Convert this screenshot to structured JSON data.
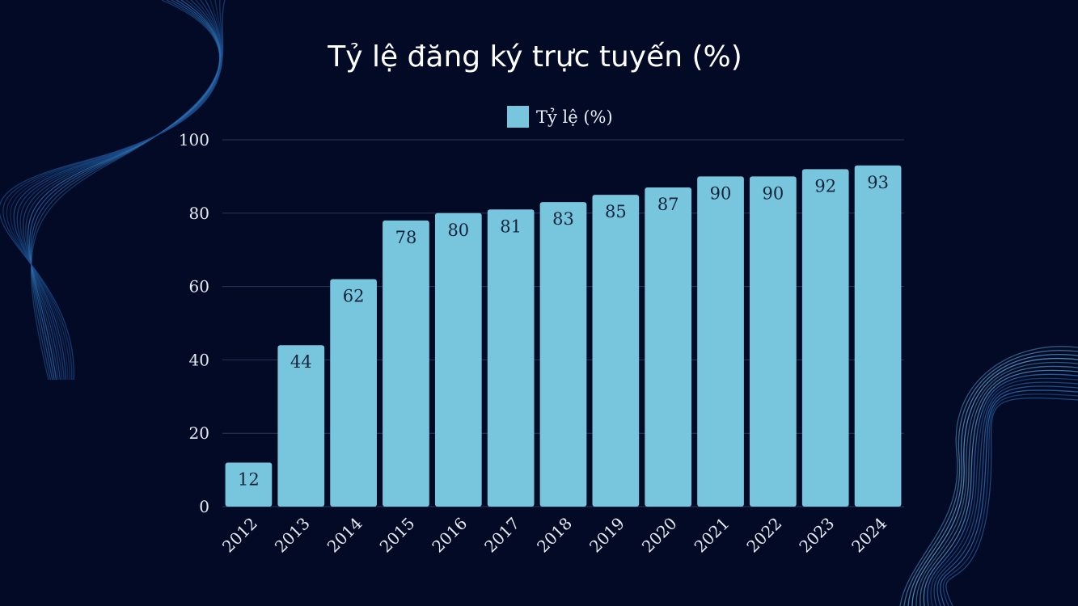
{
  "chart_data": {
    "type": "bar",
    "title": "Tỷ lệ đăng ký trực tuyến (%)",
    "categories": [
      "2012",
      "2013",
      "2014",
      "2015",
      "2016",
      "2017",
      "2018",
      "2019",
      "2020",
      "2021",
      "2022",
      "2023",
      "2024"
    ],
    "series": [
      {
        "name": "Tỷ lệ (%)",
        "values": [
          12,
          44,
          62,
          78,
          80,
          81,
          83,
          85,
          87,
          90,
          90,
          92,
          93
        ]
      }
    ],
    "xlabel": "",
    "ylabel": "",
    "ylim": [
      0,
      100
    ],
    "yticks": [
      0,
      20,
      40,
      60,
      80,
      100
    ],
    "grid": true,
    "legend_position": "top",
    "data_labels": true
  },
  "colors": {
    "background": "#020a26",
    "bar": "#78c6de",
    "gridline": "#2a3658",
    "text": "#e6ecf5",
    "data_label": "#10233a"
  }
}
